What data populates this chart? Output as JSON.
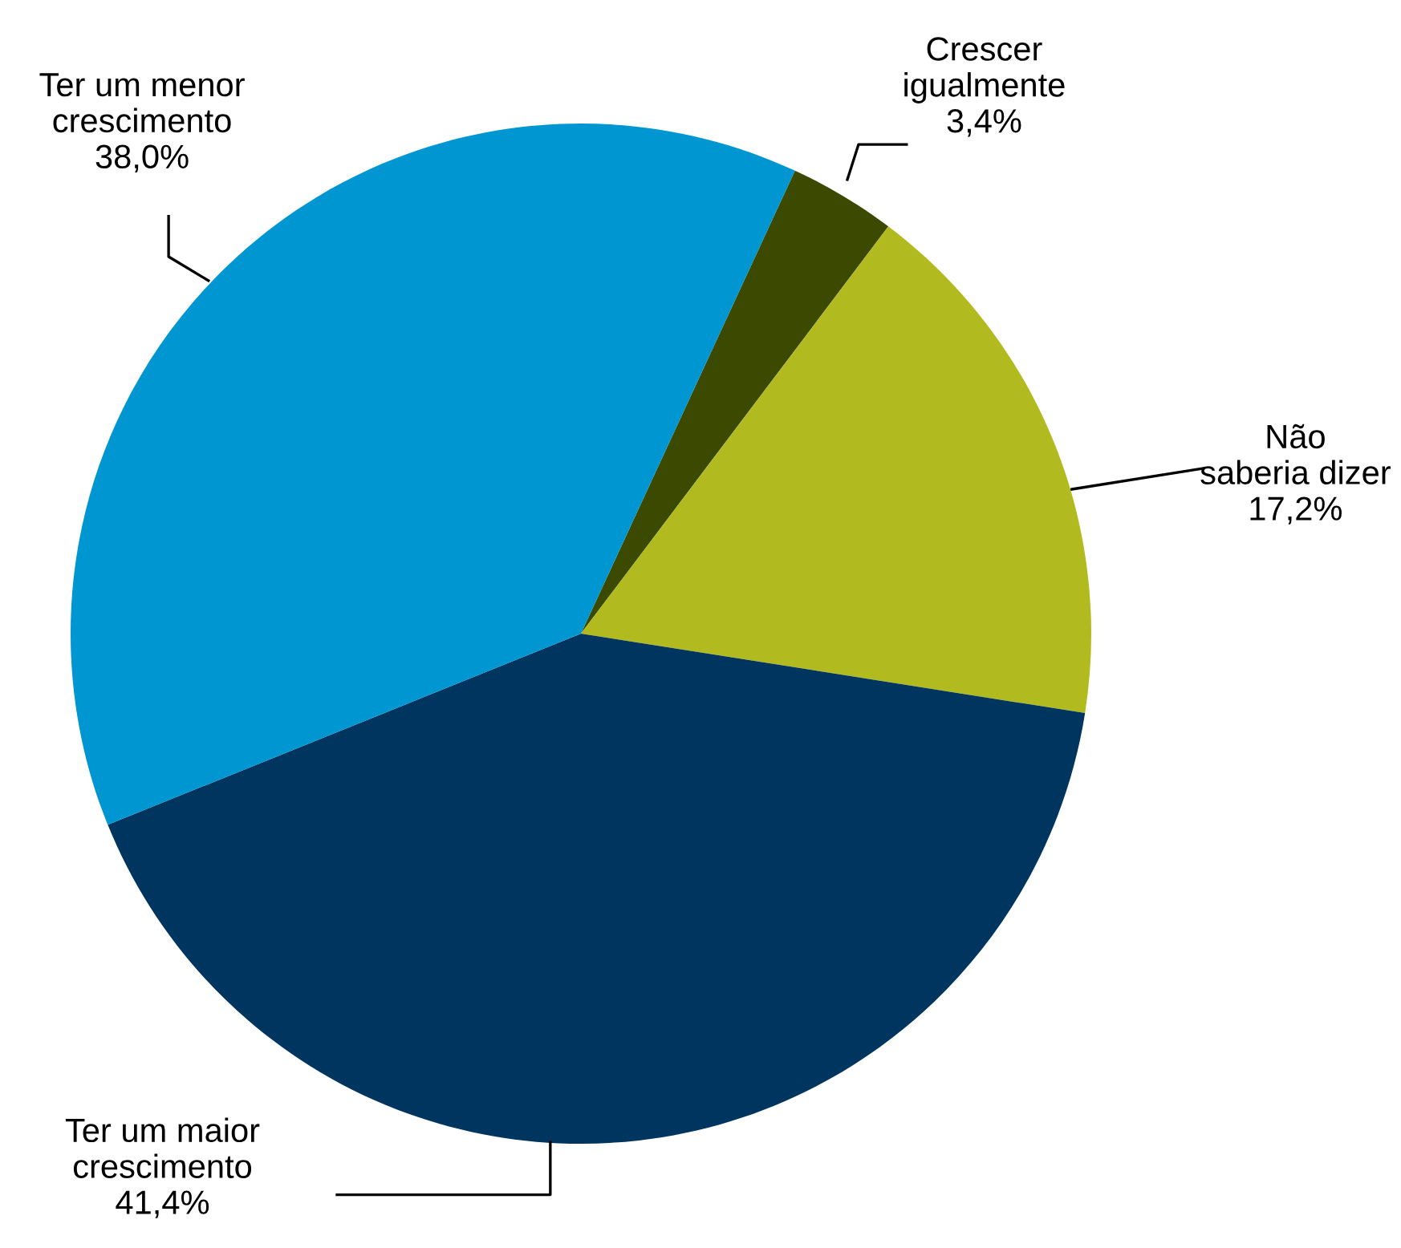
{
  "chart_data": {
    "type": "pie",
    "categories": [
      "Crescer\nigualmente",
      "Não\nsaberia dizer",
      "Ter um maior\ncrescimento",
      "Ter um menor\ncrescimento"
    ],
    "values": [
      3.4,
      17.2,
      41.4,
      38.0
    ],
    "value_labels": [
      "3,4%",
      "17,2%",
      "41,4%",
      "38,0%"
    ],
    "colors": [
      "#3b4a00",
      "#b1bb20",
      "#00355f",
      "#0096d2"
    ],
    "legend": false
  }
}
